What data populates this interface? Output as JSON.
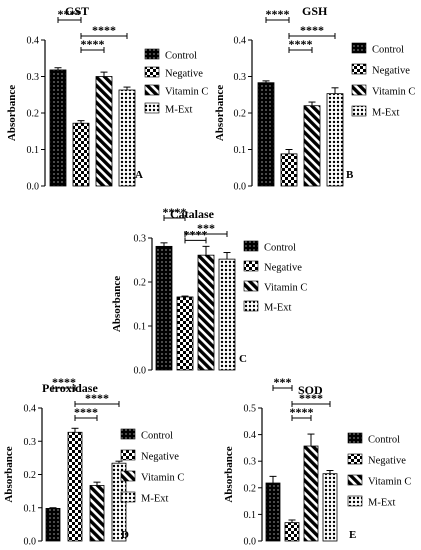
{
  "figure": {
    "legend_labels": [
      "Control",
      "Negative",
      "Vitamin C",
      "M-Ext"
    ],
    "colors": {
      "ink": "#000000",
      "background": "#ffffff"
    }
  },
  "chart_data": [
    {
      "type": "bar",
      "title": "GST",
      "panel_label": "A",
      "ylabel": "Absorbance",
      "categories": [
        "Control",
        "Negative",
        "Vitamin C",
        "M-Ext"
      ],
      "values": [
        0.318,
        0.172,
        0.3,
        0.263
      ],
      "errors": [
        0.006,
        0.007,
        0.012,
        0.008
      ],
      "ylim": [
        0,
        0.4
      ],
      "yticks": [
        "0.0",
        "0.1",
        "0.2",
        "0.3",
        "0.4"
      ],
      "significance": [
        {
          "from": 0,
          "to": 1,
          "label": "****"
        },
        {
          "from": 1,
          "to": 3,
          "label": "****"
        },
        {
          "from": 1,
          "to": 2,
          "label": "****"
        }
      ]
    },
    {
      "type": "bar",
      "title": "GSH",
      "panel_label": "B",
      "ylabel": "Absorbance",
      "categories": [
        "Control",
        "Negative",
        "Vitamin C",
        "M-Ext"
      ],
      "values": [
        0.283,
        0.088,
        0.22,
        0.253
      ],
      "errors": [
        0.005,
        0.012,
        0.01,
        0.016
      ],
      "ylim": [
        0,
        0.4
      ],
      "yticks": [
        "0.0",
        "0.1",
        "0.2",
        "0.3",
        "0.4"
      ],
      "significance": [
        {
          "from": 0,
          "to": 1,
          "label": "****"
        },
        {
          "from": 1,
          "to": 3,
          "label": "****"
        },
        {
          "from": 1,
          "to": 2,
          "label": "****"
        }
      ]
    },
    {
      "type": "bar",
      "title": "Catalase",
      "panel_label": "C",
      "ylabel": "Absorbance",
      "categories": [
        "Control",
        "Negative",
        "Vitamin C",
        "M-Ext"
      ],
      "values": [
        0.281,
        0.166,
        0.261,
        0.252
      ],
      "errors": [
        0.008,
        0.002,
        0.02,
        0.015
      ],
      "ylim": [
        0,
        0.3
      ],
      "yticks": [
        "0.0",
        "0.1",
        "0.2",
        "0.3"
      ],
      "significance": [
        {
          "from": 0,
          "to": 1,
          "label": "****"
        },
        {
          "from": 1,
          "to": 3,
          "label": "***"
        },
        {
          "from": 1,
          "to": 2,
          "label": "****"
        }
      ]
    },
    {
      "type": "bar",
      "title": "Peroxidase",
      "panel_label": "D",
      "ylabel": "Absorbance",
      "categories": [
        "Control",
        "Negative",
        "Vitamin C",
        "M-Ext"
      ],
      "values": [
        0.098,
        0.327,
        0.167,
        0.234
      ],
      "errors": [
        0.002,
        0.012,
        0.01,
        0.006
      ],
      "ylim": [
        0,
        0.4
      ],
      "yticks": [
        "0.0",
        "0.1",
        "0.2",
        "0.3",
        "0.4"
      ],
      "significance": [
        {
          "from": 0,
          "to": 1,
          "label": "****"
        },
        {
          "from": 1,
          "to": 3,
          "label": "****"
        },
        {
          "from": 1,
          "to": 2,
          "label": "****"
        }
      ]
    },
    {
      "type": "bar",
      "title": "SOD",
      "panel_label": "E",
      "ylabel": "Absorbance",
      "categories": [
        "Control",
        "Negative",
        "Vitamin C",
        "M-Ext"
      ],
      "values": [
        0.218,
        0.069,
        0.357,
        0.253
      ],
      "errors": [
        0.025,
        0.01,
        0.045,
        0.012
      ],
      "ylim": [
        0,
        0.5
      ],
      "yticks": [
        "0.0",
        "0.1",
        "0.2",
        "0.3",
        "0.4",
        "0.5"
      ],
      "significance": [
        {
          "from": 0,
          "to": 1,
          "label": "***"
        },
        {
          "from": 1,
          "to": 3,
          "label": "****"
        },
        {
          "from": 1,
          "to": 2,
          "label": "****"
        }
      ]
    }
  ]
}
